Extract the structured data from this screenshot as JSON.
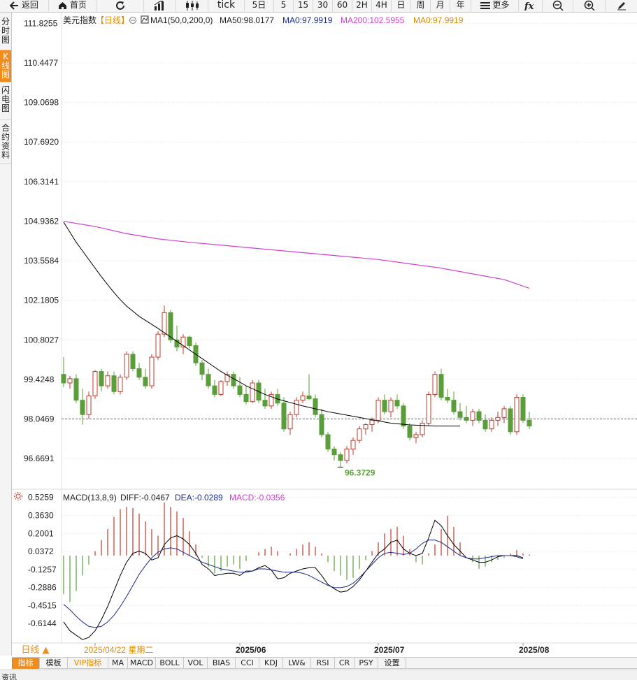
{
  "toolbar": {
    "items": [
      {
        "label": "返回",
        "icon": "back-arrow-icon"
      },
      {
        "label": "首页",
        "icon": "home-icon"
      },
      {
        "label": "",
        "icon": "refresh-icon"
      },
      {
        "label": "",
        "icon": "bar-chart-icon"
      },
      {
        "label": "",
        "icon": "candlestick-icon"
      },
      {
        "label": "tick",
        "icon": ""
      },
      {
        "label": "5日",
        "icon": ""
      },
      {
        "label": "5",
        "icon": ""
      },
      {
        "label": "15",
        "icon": ""
      },
      {
        "label": "30",
        "icon": ""
      },
      {
        "label": "60",
        "icon": ""
      },
      {
        "label": "2H",
        "icon": ""
      },
      {
        "label": "4H",
        "icon": ""
      },
      {
        "label": "日",
        "icon": ""
      },
      {
        "label": "周",
        "icon": ""
      },
      {
        "label": "月",
        "icon": ""
      },
      {
        "label": "年",
        "icon": ""
      },
      {
        "label": "更多",
        "icon": "menu-icon"
      },
      {
        "label": "",
        "icon": "fx-icon"
      },
      {
        "label": "",
        "icon": "zoom-out-icon"
      },
      {
        "label": "",
        "icon": "zoom-in-icon"
      },
      {
        "label": "",
        "icon": "pencil-icon"
      }
    ]
  },
  "side_tabs": [
    {
      "label": "分时图",
      "active": false
    },
    {
      "label": "K线图",
      "active": true
    },
    {
      "label": "闪电图",
      "active": false
    },
    {
      "label": "合约资料",
      "active": false
    }
  ],
  "main_legend": {
    "symbol": "美元指数",
    "period": "【日线】",
    "ma_label": "MA1(50,0,200,0)",
    "ma50": "MA50:98.0177",
    "ma0a": "MA0:97.9919",
    "ma200": "MA200:102.5955",
    "ma0b": "MA0:97.9919"
  },
  "macd_legend": {
    "label": "MACD(13,8,9)",
    "diff": "DIFF:-0.0467",
    "dea": "DEA:-0.0289",
    "macd": "MACD:-0.0356"
  },
  "colors": {
    "up": "#c0392b",
    "down": "#5a9e3a",
    "ma50": "#000000",
    "ma200": "#d040d0",
    "dea": "#1a2a8c",
    "legend_blue": "#1a2a9c",
    "legend_orange": "#e08a00",
    "current_price_line": "#2a6ad8"
  },
  "low_marker": "96.3729",
  "period_selector": "日线 ▲",
  "bottom_tabs": [
    "指标",
    "模板",
    "VIP指标",
    "MA",
    "MACD",
    "BOLL",
    "VOL",
    "BIAS",
    "CCI",
    "KDJ",
    "LW&",
    "RSI",
    "CR",
    "PSY",
    "设置"
  ],
  "status_text": "资讯",
  "chart_data": [
    {
      "type": "candlestick",
      "title": "美元指数",
      "y_ticks": [
        "111.8255",
        "110.4477",
        "109.0698",
        "107.6920",
        "106.3141",
        "104.9362",
        "103.5584",
        "102.1805",
        "100.8027",
        "99.4248",
        "98.0469",
        "96.6691"
      ],
      "ylim": [
        95.6,
        112.2
      ],
      "current_price": 98.0469,
      "x_labels": [
        {
          "label": "2025/04/22 星期二",
          "index": 5
        },
        {
          "label": "2025/06",
          "index": 28
        },
        {
          "label": "2025/07",
          "index": 50
        },
        {
          "label": "2025/08",
          "index": 73
        }
      ],
      "candles": [
        [
          99.6,
          100.2,
          99.15,
          99.3
        ],
        [
          99.3,
          99.55,
          99.1,
          99.45
        ],
        [
          99.45,
          99.6,
          98.6,
          98.7
        ],
        [
          98.7,
          99.1,
          97.85,
          98.2
        ],
        [
          98.2,
          99.0,
          98.05,
          98.85
        ],
        [
          98.85,
          99.75,
          98.75,
          99.7
        ],
        [
          99.7,
          99.8,
          99.0,
          99.2
        ],
        [
          99.2,
          99.7,
          99.1,
          99.55
        ],
        [
          99.55,
          99.7,
          98.9,
          99.0
        ],
        [
          99.0,
          99.6,
          98.9,
          99.5
        ],
        [
          99.5,
          100.4,
          99.4,
          100.3
        ],
        [
          100.3,
          100.4,
          99.7,
          99.8
        ],
        [
          99.8,
          100.0,
          99.4,
          99.5
        ],
        [
          99.5,
          99.8,
          99.1,
          99.2
        ],
        [
          99.2,
          100.3,
          99.1,
          100.2
        ],
        [
          100.2,
          101.1,
          100.1,
          101.0
        ],
        [
          101.0,
          102.0,
          100.9,
          101.75
        ],
        [
          101.75,
          101.85,
          100.7,
          100.8
        ],
        [
          100.8,
          101.3,
          100.4,
          100.55
        ],
        [
          100.55,
          101.0,
          100.3,
          100.9
        ],
        [
          100.9,
          100.95,
          100.5,
          100.6
        ],
        [
          100.6,
          100.7,
          99.9,
          100.0
        ],
        [
          100.0,
          100.1,
          99.4,
          99.6
        ],
        [
          99.6,
          99.8,
          99.1,
          99.2
        ],
        [
          99.2,
          99.4,
          98.8,
          98.9
        ],
        [
          98.9,
          99.4,
          98.85,
          99.35
        ],
        [
          99.35,
          99.7,
          99.2,
          99.6
        ],
        [
          99.6,
          99.7,
          99.1,
          99.2
        ],
        [
          99.2,
          99.5,
          98.8,
          98.9
        ],
        [
          98.9,
          99.2,
          98.55,
          98.65
        ],
        [
          98.65,
          99.4,
          98.6,
          99.3
        ],
        [
          99.3,
          99.4,
          98.6,
          98.7
        ],
        [
          98.7,
          99.1,
          98.4,
          98.5
        ],
        [
          98.5,
          99.0,
          98.4,
          98.9
        ],
        [
          98.9,
          99.1,
          98.5,
          98.6
        ],
        [
          98.6,
          98.8,
          97.6,
          97.7
        ],
        [
          97.7,
          98.3,
          97.5,
          98.2
        ],
        [
          98.2,
          98.8,
          98.1,
          98.7
        ],
        [
          98.7,
          99.0,
          98.6,
          98.85
        ],
        [
          98.85,
          99.6,
          98.7,
          98.75
        ],
        [
          98.75,
          98.9,
          98.1,
          98.2
        ],
        [
          98.2,
          98.4,
          97.4,
          97.5
        ],
        [
          97.5,
          97.6,
          96.9,
          97.0
        ],
        [
          97.0,
          97.1,
          96.6,
          96.8
        ],
        [
          96.8,
          96.9,
          96.37,
          96.6
        ],
        [
          96.6,
          97.1,
          96.5,
          97.0
        ],
        [
          97.0,
          97.4,
          96.8,
          97.3
        ],
        [
          97.3,
          97.8,
          97.2,
          97.7
        ],
        [
          97.7,
          97.9,
          97.5,
          97.85
        ],
        [
          97.85,
          98.1,
          97.6,
          98.0
        ],
        [
          98.0,
          98.8,
          97.9,
          98.7
        ],
        [
          98.7,
          98.9,
          98.2,
          98.3
        ],
        [
          98.3,
          98.8,
          98.1,
          98.7
        ],
        [
          98.7,
          98.9,
          98.4,
          98.5
        ],
        [
          98.5,
          98.6,
          97.7,
          97.8
        ],
        [
          97.8,
          97.9,
          97.3,
          97.4
        ],
        [
          97.4,
          97.6,
          97.2,
          97.5
        ],
        [
          97.5,
          98.0,
          97.4,
          97.9
        ],
        [
          97.9,
          99.0,
          97.8,
          98.9
        ],
        [
          98.9,
          99.7,
          98.8,
          99.6
        ],
        [
          99.6,
          99.8,
          98.7,
          98.8
        ],
        [
          98.8,
          99.1,
          98.6,
          98.7
        ],
        [
          98.7,
          99.0,
          98.2,
          98.3
        ],
        [
          98.3,
          98.6,
          98.0,
          98.1
        ],
        [
          98.1,
          98.5,
          97.9,
          98.0
        ],
        [
          98.0,
          98.4,
          97.8,
          98.3
        ],
        [
          98.3,
          98.4,
          97.9,
          98.0
        ],
        [
          98.0,
          98.2,
          97.6,
          97.7
        ],
        [
          97.7,
          98.1,
          97.6,
          98.0
        ],
        [
          98.0,
          98.3,
          97.8,
          98.1
        ],
        [
          98.1,
          98.5,
          97.9,
          98.4
        ],
        [
          98.4,
          98.5,
          97.5,
          97.6
        ],
        [
          97.6,
          98.9,
          97.5,
          98.8
        ],
        [
          98.8,
          98.9,
          97.9,
          98.0
        ],
        [
          98.0,
          98.3,
          97.7,
          97.8
        ]
      ],
      "ma50": [
        104.9,
        104.55,
        104.2,
        103.9,
        103.6,
        103.3,
        103.0,
        102.72,
        102.45,
        102.2,
        101.98,
        101.8,
        101.62,
        101.48,
        101.34,
        101.2,
        101.05,
        100.9,
        100.75,
        100.6,
        100.45,
        100.3,
        100.15,
        100.0,
        99.85,
        99.7,
        99.57,
        99.45,
        99.33,
        99.2,
        99.1,
        99.0,
        98.9,
        98.82,
        98.74,
        98.68,
        98.62,
        98.56,
        98.5,
        98.45,
        98.4,
        98.35,
        98.3,
        98.26,
        98.22,
        98.18,
        98.14,
        98.1,
        98.06,
        98.02,
        97.98,
        97.94,
        97.9,
        97.88,
        97.86,
        97.84,
        97.83,
        97.82,
        97.81,
        97.8,
        97.8,
        97.8,
        97.8,
        97.8
      ],
      "ma200": [
        104.93,
        104.75,
        104.5,
        104.32,
        104.2,
        104.1,
        104.0,
        103.9,
        103.8,
        103.7,
        103.6,
        103.45,
        103.3,
        103.1,
        102.9,
        102.6
      ],
      "ma200_x_index": [
        0,
        5,
        10,
        15,
        20,
        25,
        30,
        35,
        40,
        45,
        50,
        55,
        60,
        65,
        70,
        74
      ]
    },
    {
      "type": "macd",
      "y_ticks": [
        "0.5259",
        "0.3630",
        "0.2001",
        "0.0372",
        "-0.1257",
        "-0.2886",
        "-0.4515",
        "-0.6144"
      ],
      "ylim": [
        -0.79,
        0.6
      ],
      "hist": [
        -0.35,
        -0.42,
        -0.32,
        -0.18,
        -0.08,
        0.04,
        0.14,
        0.24,
        0.35,
        0.42,
        0.44,
        0.43,
        0.38,
        0.31,
        0.24,
        0.18,
        0.48,
        0.44,
        0.4,
        0.34,
        0.22,
        0.1,
        -0.02,
        -0.1,
        -0.16,
        -0.14,
        -0.1,
        -0.08,
        -0.12,
        -0.05,
        0.0,
        0.03,
        0.06,
        0.08,
        0.04,
        0.0,
        0.02,
        0.06,
        0.1,
        0.12,
        0.08,
        0.02,
        -0.06,
        -0.14,
        -0.18,
        -0.22,
        -0.2,
        -0.12,
        -0.04,
        0.04,
        0.12,
        0.2,
        0.24,
        0.26,
        0.18,
        0.06,
        -0.06,
        -0.08,
        0.02,
        0.1,
        0.24,
        0.36,
        0.26,
        0.12,
        0.0,
        -0.06,
        -0.12,
        -0.1,
        -0.06,
        -0.04,
        -0.02,
        0.02,
        0.05,
        0.02,
        0.01
      ],
      "diff": [
        -0.6,
        -0.68,
        -0.72,
        -0.76,
        -0.74,
        -0.68,
        -0.58,
        -0.46,
        -0.32,
        -0.18,
        -0.06,
        0.02,
        0.04,
        0.02,
        -0.04,
        -0.02,
        0.1,
        0.16,
        0.18,
        0.15,
        0.1,
        0.02,
        -0.08,
        -0.12,
        -0.18,
        -0.17,
        -0.16,
        -0.16,
        -0.18,
        -0.14,
        -0.14,
        -0.11,
        -0.09,
        -0.13,
        -0.21,
        -0.2,
        -0.16,
        -0.14,
        -0.12,
        -0.11,
        -0.11,
        -0.18,
        -0.26,
        -0.3,
        -0.33,
        -0.32,
        -0.28,
        -0.22,
        -0.14,
        -0.06,
        0.02,
        0.06,
        0.12,
        0.14,
        0.06,
        0.02,
        0.0,
        0.02,
        0.16,
        0.32,
        0.27,
        0.18,
        0.1,
        0.04,
        -0.02,
        -0.04,
        -0.06,
        -0.06,
        -0.04,
        -0.01,
        0.0,
        0.0,
        0.0,
        -0.02
      ],
      "dea": [
        -0.44,
        -0.49,
        -0.55,
        -0.6,
        -0.64,
        -0.65,
        -0.64,
        -0.6,
        -0.54,
        -0.46,
        -0.37,
        -0.27,
        -0.17,
        -0.09,
        -0.02,
        0.03,
        0.06,
        0.07,
        0.06,
        0.03,
        0.0,
        -0.03,
        -0.06,
        -0.08,
        -0.1,
        -0.12,
        -0.13,
        -0.14,
        -0.15,
        -0.15,
        -0.14,
        -0.12,
        -0.12,
        -0.13,
        -0.14,
        -0.15,
        -0.15,
        -0.15,
        -0.16,
        -0.18,
        -0.21,
        -0.24,
        -0.27,
        -0.29,
        -0.29,
        -0.28,
        -0.25,
        -0.2,
        -0.14,
        -0.08,
        -0.02,
        0.02,
        0.03,
        0.02,
        0.01,
        0.02,
        0.06,
        0.11,
        0.14,
        0.14,
        0.12,
        0.08,
        0.04,
        0.0,
        -0.02,
        -0.03,
        -0.03,
        -0.02,
        -0.01,
        0.0,
        0.0,
        0.0,
        -0.01,
        -0.03
      ]
    }
  ]
}
